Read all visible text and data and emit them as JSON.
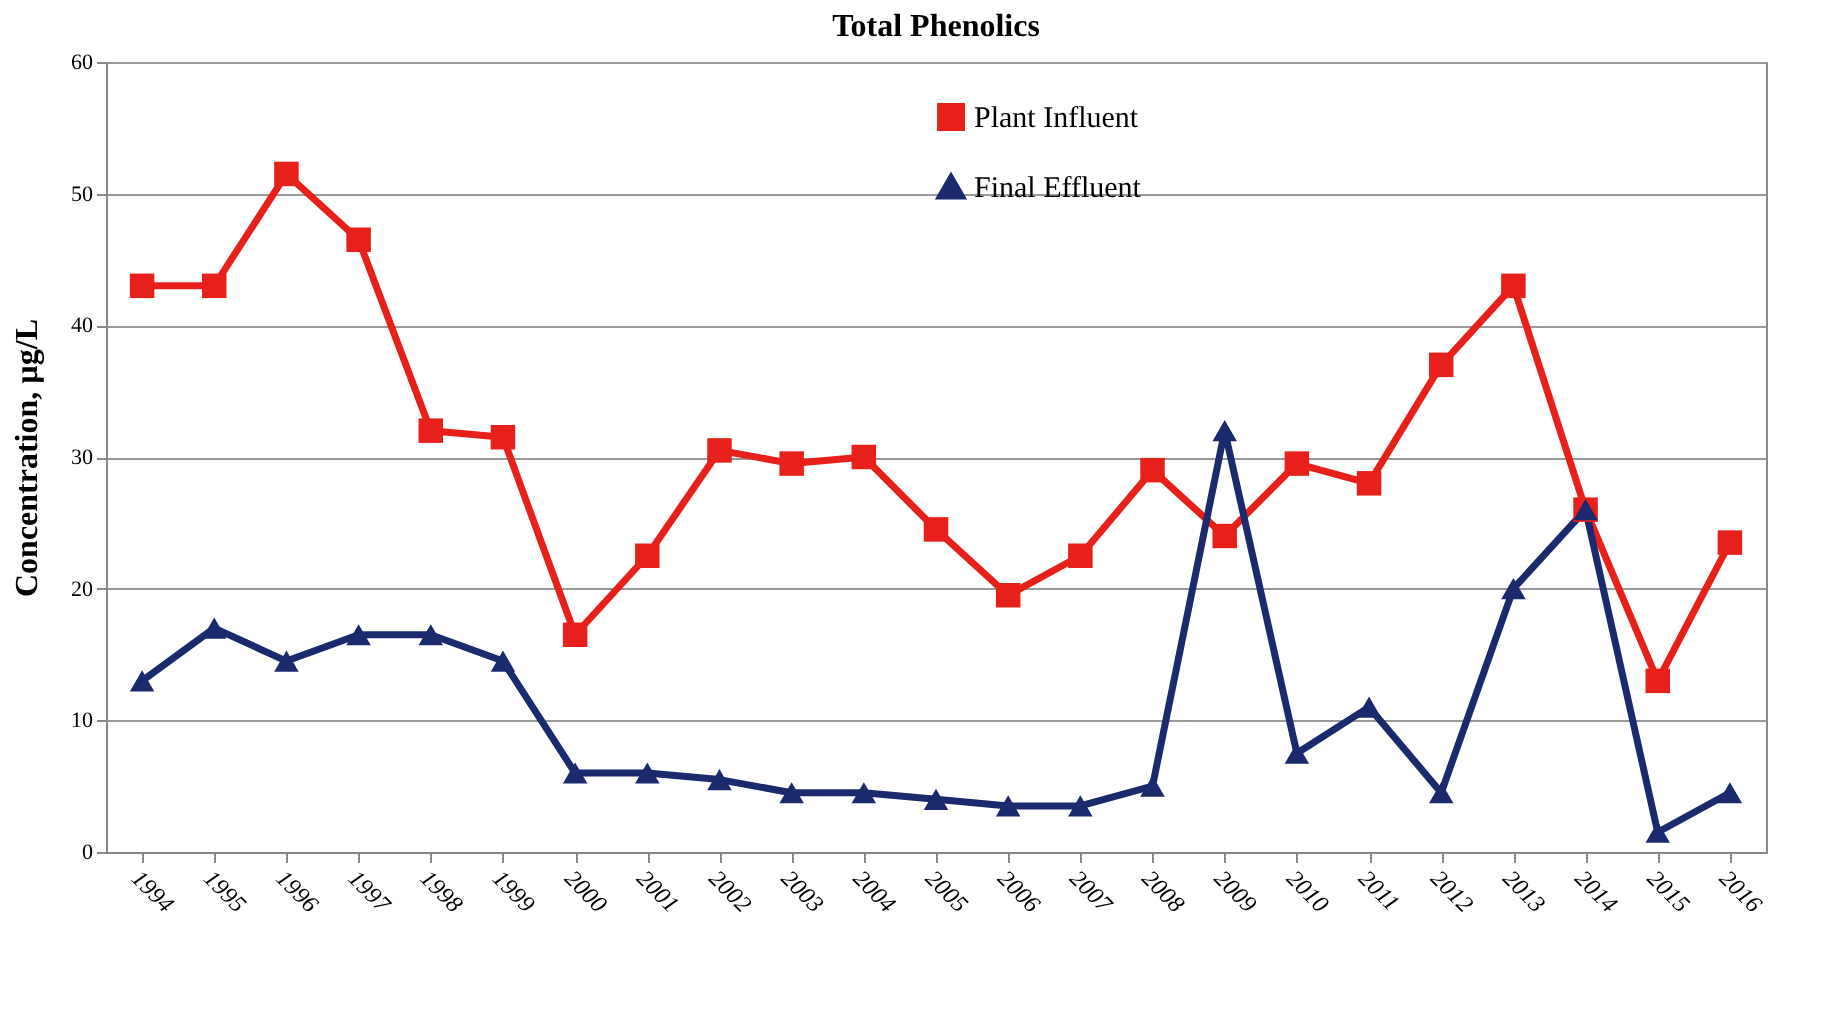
{
  "chart_data": {
    "type": "line",
    "title": "Total Phenolics",
    "ylabel": "Concentration, µg/L",
    "categories": [
      "1994",
      "1995",
      "1996",
      "1997",
      "1998",
      "1999",
      "2000",
      "2001",
      "2002",
      "2003",
      "2004",
      "2005",
      "2006",
      "2007",
      "2008",
      "2009",
      "2010",
      "2011",
      "2012",
      "2013",
      "2014",
      "2015",
      "2016"
    ],
    "series": [
      {
        "name": "Plant Influent",
        "color": "#e8201c",
        "marker": "square",
        "values": [
          43,
          43,
          51.5,
          46.5,
          32,
          31.5,
          16.5,
          22.5,
          30.5,
          29.5,
          30,
          24.5,
          19.5,
          22.5,
          29,
          24,
          29.5,
          28,
          37,
          43,
          26,
          13,
          23.5
        ]
      },
      {
        "name": "Final Effluent",
        "color": "#1a2a6c",
        "marker": "triangle",
        "values": [
          13,
          17,
          14.5,
          16.5,
          16.5,
          14.5,
          6,
          6,
          5.5,
          4.5,
          4.5,
          4,
          3.5,
          3.5,
          5,
          32,
          7.5,
          11,
          4.5,
          20,
          26,
          1.5,
          4.5
        ]
      }
    ],
    "ylim": [
      0,
      60
    ],
    "yticks": [
      0,
      10,
      20,
      30,
      40,
      50,
      60
    ],
    "grid": "y",
    "legend": "top",
    "line_style": "solid"
  }
}
